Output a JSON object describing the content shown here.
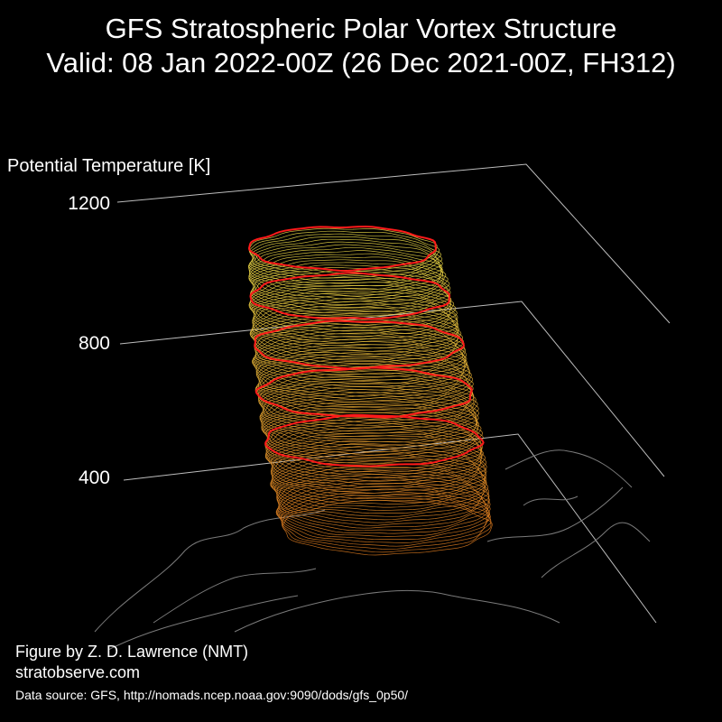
{
  "header": {
    "title": "GFS Stratospheric Polar Vortex Structure",
    "subtitle": "Valid: 08 Jan 2022-00Z  (26 Dec 2021-00Z, FH312)"
  },
  "chart_data": {
    "type": "3d-isosurface",
    "zlabel": "Potential Temperature [K]",
    "z_ticks": [
      "400",
      "800",
      "1200"
    ],
    "zlim": [
      0,
      1200
    ],
    "highlighted_levels_K": [
      400,
      600,
      800,
      1000,
      1200
    ],
    "color_scale": {
      "low": "#e0781e",
      "high": "#f2e24a",
      "highlight": "#ff1a1a"
    },
    "basemap": "northern-hemisphere-coastlines",
    "background": "#000000"
  },
  "footer": {
    "credit": "Figure by Z. D. Lawrence (NMT)",
    "site": "stratobserve.com",
    "source": "Data source: GFS, http://nomads.ncep.noaa.gov:9090/dods/gfs_0p50/"
  }
}
